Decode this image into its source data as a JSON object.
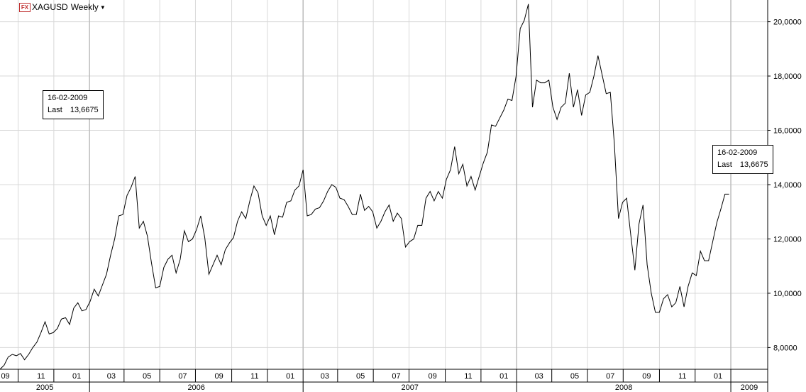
{
  "header": {
    "fx_icon": "FX",
    "symbol": "XAGUSD",
    "period": "Weekly",
    "dropdown_icon": "▼"
  },
  "tooltip_left": {
    "date": "16-02-2009",
    "label": "Last",
    "value": "13,6675"
  },
  "tooltip_right": {
    "date": "16-02-2009",
    "label": "Last",
    "value": "13,6675"
  },
  "colors": {
    "line": "#000000",
    "grid": "#d8d8d8",
    "year_grid": "#bdbdbd",
    "axis": "#000000"
  },
  "chart_data": {
    "type": "line",
    "title": "",
    "xlabel": "",
    "ylabel": "",
    "ylim": [
      7.2,
      20.8
    ],
    "y_ticks": [
      {
        "value": 8,
        "label": "8,0000"
      },
      {
        "value": 10,
        "label": "10,0000"
      },
      {
        "value": 12,
        "label": "12,0000"
      },
      {
        "value": 14,
        "label": "14,0000"
      },
      {
        "value": 16,
        "label": "16,0000"
      },
      {
        "value": 18,
        "label": "18,0000"
      },
      {
        "value": 20,
        "label": "20,0000"
      }
    ],
    "x_start": "2005-08-01",
    "x_end": "2009-03-05",
    "month_ticks": [
      {
        "date": "2005-09-01",
        "label": "09"
      },
      {
        "date": "2005-11-01",
        "label": "11"
      },
      {
        "date": "2006-01-01",
        "label": "01"
      },
      {
        "date": "2006-03-01",
        "label": "03"
      },
      {
        "date": "2006-05-01",
        "label": "05"
      },
      {
        "date": "2006-07-01",
        "label": "07"
      },
      {
        "date": "2006-09-01",
        "label": "09"
      },
      {
        "date": "2006-11-01",
        "label": "11"
      },
      {
        "date": "2007-01-01",
        "label": "01"
      },
      {
        "date": "2007-03-01",
        "label": "03"
      },
      {
        "date": "2007-05-01",
        "label": "05"
      },
      {
        "date": "2007-07-01",
        "label": "07"
      },
      {
        "date": "2007-09-01",
        "label": "09"
      },
      {
        "date": "2007-11-01",
        "label": "11"
      },
      {
        "date": "2008-01-01",
        "label": "01"
      },
      {
        "date": "2008-03-01",
        "label": "03"
      },
      {
        "date": "2008-05-01",
        "label": "05"
      },
      {
        "date": "2008-07-01",
        "label": "07"
      },
      {
        "date": "2008-09-01",
        "label": "09"
      },
      {
        "date": "2008-11-01",
        "label": "11"
      },
      {
        "date": "2009-01-01",
        "label": "01"
      }
    ],
    "year_ticks": [
      {
        "date": "2006-01-01",
        "label": "2006"
      },
      {
        "date": "2007-01-01",
        "label": "2007"
      },
      {
        "date": "2008-01-01",
        "label": "2008"
      },
      {
        "date": "2009-01-01",
        "label": "2009"
      }
    ],
    "year_labels": [
      {
        "year": "2005",
        "from": "2005-08-01",
        "to": "2006-01-01"
      },
      {
        "year": "2006",
        "from": "2006-01-01",
        "to": "2007-01-01"
      },
      {
        "year": "2007",
        "from": "2007-01-01",
        "to": "2008-01-01"
      },
      {
        "year": "2008",
        "from": "2008-01-01",
        "to": "2009-01-01"
      },
      {
        "year": "2009",
        "from": "2009-01-01",
        "to": "2009-03-05"
      }
    ],
    "series": [
      {
        "points": [
          [
            "2005-08-01",
            7.2
          ],
          [
            "2005-08-08",
            7.35
          ],
          [
            "2005-08-15",
            7.65
          ],
          [
            "2005-08-22",
            7.75
          ],
          [
            "2005-08-29",
            7.7
          ],
          [
            "2005-09-05",
            7.78
          ],
          [
            "2005-09-12",
            7.55
          ],
          [
            "2005-09-19",
            7.75
          ],
          [
            "2005-09-26",
            8.0
          ],
          [
            "2005-10-03",
            8.2
          ],
          [
            "2005-10-10",
            8.55
          ],
          [
            "2005-10-17",
            8.95
          ],
          [
            "2005-10-24",
            8.5
          ],
          [
            "2005-10-31",
            8.55
          ],
          [
            "2005-11-07",
            8.7
          ],
          [
            "2005-11-14",
            9.05
          ],
          [
            "2005-11-21",
            9.1
          ],
          [
            "2005-11-28",
            8.85
          ],
          [
            "2005-12-05",
            9.45
          ],
          [
            "2005-12-12",
            9.65
          ],
          [
            "2005-12-19",
            9.35
          ],
          [
            "2005-12-26",
            9.4
          ],
          [
            "2006-01-02",
            9.7
          ],
          [
            "2006-01-09",
            10.15
          ],
          [
            "2006-01-16",
            9.9
          ],
          [
            "2006-01-23",
            10.3
          ],
          [
            "2006-01-30",
            10.7
          ],
          [
            "2006-02-06",
            11.4
          ],
          [
            "2006-02-13",
            12.0
          ],
          [
            "2006-02-20",
            12.85
          ],
          [
            "2006-02-27",
            12.9
          ],
          [
            "2006-03-06",
            13.6
          ],
          [
            "2006-03-13",
            13.9
          ],
          [
            "2006-03-20",
            14.3
          ],
          [
            "2006-03-27",
            12.4
          ],
          [
            "2006-04-03",
            12.65
          ],
          [
            "2006-04-10",
            12.1
          ],
          [
            "2006-04-17",
            11.1
          ],
          [
            "2006-04-24",
            10.2
          ],
          [
            "2006-05-01",
            10.25
          ],
          [
            "2006-05-08",
            10.95
          ],
          [
            "2006-05-15",
            11.25
          ],
          [
            "2006-05-22",
            11.4
          ],
          [
            "2006-05-29",
            10.75
          ],
          [
            "2006-06-05",
            11.25
          ],
          [
            "2006-06-12",
            12.3
          ],
          [
            "2006-06-19",
            11.9
          ],
          [
            "2006-06-26",
            12.0
          ],
          [
            "2006-07-03",
            12.35
          ],
          [
            "2006-07-10",
            12.85
          ],
          [
            "2006-07-17",
            12.05
          ],
          [
            "2006-07-24",
            10.7
          ],
          [
            "2006-07-31",
            11.05
          ],
          [
            "2006-08-07",
            11.4
          ],
          [
            "2006-08-14",
            11.05
          ],
          [
            "2006-08-21",
            11.6
          ],
          [
            "2006-08-28",
            11.85
          ],
          [
            "2006-09-04",
            12.05
          ],
          [
            "2006-09-11",
            12.65
          ],
          [
            "2006-09-18",
            13.0
          ],
          [
            "2006-09-25",
            12.75
          ],
          [
            "2006-10-02",
            13.4
          ],
          [
            "2006-10-09",
            13.95
          ],
          [
            "2006-10-16",
            13.7
          ],
          [
            "2006-10-23",
            12.85
          ],
          [
            "2006-10-30",
            12.5
          ],
          [
            "2006-11-06",
            12.85
          ],
          [
            "2006-11-13",
            12.15
          ],
          [
            "2006-11-20",
            12.85
          ],
          [
            "2006-11-27",
            12.8
          ],
          [
            "2006-12-04",
            13.35
          ],
          [
            "2006-12-11",
            13.4
          ],
          [
            "2006-12-18",
            13.8
          ],
          [
            "2006-12-25",
            13.95
          ],
          [
            "2007-01-01",
            14.55
          ],
          [
            "2007-01-08",
            12.85
          ],
          [
            "2007-01-15",
            12.9
          ],
          [
            "2007-01-22",
            13.1
          ],
          [
            "2007-01-29",
            13.15
          ],
          [
            "2007-02-05",
            13.4
          ],
          [
            "2007-02-12",
            13.75
          ],
          [
            "2007-02-19",
            14.0
          ],
          [
            "2007-02-26",
            13.9
          ],
          [
            "2007-03-05",
            13.5
          ],
          [
            "2007-03-12",
            13.45
          ],
          [
            "2007-03-19",
            13.2
          ],
          [
            "2007-03-26",
            12.9
          ],
          [
            "2007-04-02",
            12.9
          ],
          [
            "2007-04-09",
            13.65
          ],
          [
            "2007-04-16",
            13.05
          ],
          [
            "2007-04-23",
            13.2
          ],
          [
            "2007-04-30",
            13.0
          ],
          [
            "2007-05-07",
            12.4
          ],
          [
            "2007-05-14",
            12.65
          ],
          [
            "2007-05-21",
            13.0
          ],
          [
            "2007-05-28",
            13.25
          ],
          [
            "2007-06-04",
            12.65
          ],
          [
            "2007-06-11",
            12.95
          ],
          [
            "2007-06-18",
            12.75
          ],
          [
            "2007-06-25",
            11.7
          ],
          [
            "2007-07-02",
            11.9
          ],
          [
            "2007-07-09",
            12.0
          ],
          [
            "2007-07-16",
            12.5
          ],
          [
            "2007-07-23",
            12.5
          ],
          [
            "2007-07-30",
            13.5
          ],
          [
            "2007-08-06",
            13.75
          ],
          [
            "2007-08-13",
            13.4
          ],
          [
            "2007-08-20",
            13.75
          ],
          [
            "2007-08-27",
            13.5
          ],
          [
            "2007-09-03",
            14.2
          ],
          [
            "2007-09-10",
            14.55
          ],
          [
            "2007-09-17",
            15.4
          ],
          [
            "2007-09-24",
            14.4
          ],
          [
            "2007-10-01",
            14.75
          ],
          [
            "2007-10-08",
            13.95
          ],
          [
            "2007-10-15",
            14.3
          ],
          [
            "2007-10-22",
            13.8
          ],
          [
            "2007-10-29",
            14.3
          ],
          [
            "2007-11-05",
            14.8
          ],
          [
            "2007-11-12",
            15.2
          ],
          [
            "2007-11-19",
            16.2
          ],
          [
            "2007-11-26",
            16.15
          ],
          [
            "2007-12-03",
            16.45
          ],
          [
            "2007-12-10",
            16.75
          ],
          [
            "2007-12-17",
            17.15
          ],
          [
            "2007-12-24",
            17.1
          ],
          [
            "2007-12-31",
            18.0
          ],
          [
            "2008-01-07",
            19.75
          ],
          [
            "2008-01-14",
            20.05
          ],
          [
            "2008-01-21",
            20.65
          ],
          [
            "2008-01-28",
            16.85
          ],
          [
            "2008-02-04",
            17.85
          ],
          [
            "2008-02-11",
            17.75
          ],
          [
            "2008-02-18",
            17.75
          ],
          [
            "2008-02-25",
            17.85
          ],
          [
            "2008-03-03",
            16.85
          ],
          [
            "2008-03-10",
            16.4
          ],
          [
            "2008-03-17",
            16.85
          ],
          [
            "2008-03-24",
            17.0
          ],
          [
            "2008-03-31",
            18.1
          ],
          [
            "2008-04-07",
            16.85
          ],
          [
            "2008-04-14",
            17.5
          ],
          [
            "2008-04-21",
            16.55
          ],
          [
            "2008-04-28",
            17.3
          ],
          [
            "2008-05-05",
            17.4
          ],
          [
            "2008-05-12",
            18.0
          ],
          [
            "2008-05-19",
            18.75
          ],
          [
            "2008-05-26",
            18.05
          ],
          [
            "2008-06-02",
            17.35
          ],
          [
            "2008-06-09",
            17.4
          ],
          [
            "2008-06-16",
            15.5
          ],
          [
            "2008-06-23",
            12.75
          ],
          [
            "2008-06-30",
            13.35
          ],
          [
            "2008-07-07",
            13.5
          ],
          [
            "2008-07-14",
            12.15
          ],
          [
            "2008-07-21",
            10.85
          ],
          [
            "2008-07-28",
            12.55
          ],
          [
            "2008-08-04",
            13.25
          ],
          [
            "2008-08-11",
            11.05
          ],
          [
            "2008-08-18",
            10.0
          ],
          [
            "2008-08-25",
            9.3
          ],
          [
            "2008-09-01",
            9.3
          ],
          [
            "2008-09-08",
            9.8
          ],
          [
            "2008-09-15",
            9.95
          ],
          [
            "2008-09-22",
            9.5
          ],
          [
            "2008-09-29",
            9.65
          ],
          [
            "2008-10-06",
            10.25
          ],
          [
            "2008-10-13",
            9.5
          ],
          [
            "2008-10-20",
            10.25
          ],
          [
            "2008-10-27",
            10.75
          ],
          [
            "2008-11-03",
            10.65
          ],
          [
            "2008-11-10",
            11.55
          ],
          [
            "2008-11-17",
            11.2
          ],
          [
            "2008-11-24",
            11.2
          ],
          [
            "2008-12-01",
            11.9
          ],
          [
            "2008-12-08",
            12.6
          ],
          [
            "2008-12-15",
            13.1
          ],
          [
            "2008-12-22",
            13.65
          ],
          [
            "2008-12-29",
            13.65
          ]
        ]
      }
    ]
  }
}
